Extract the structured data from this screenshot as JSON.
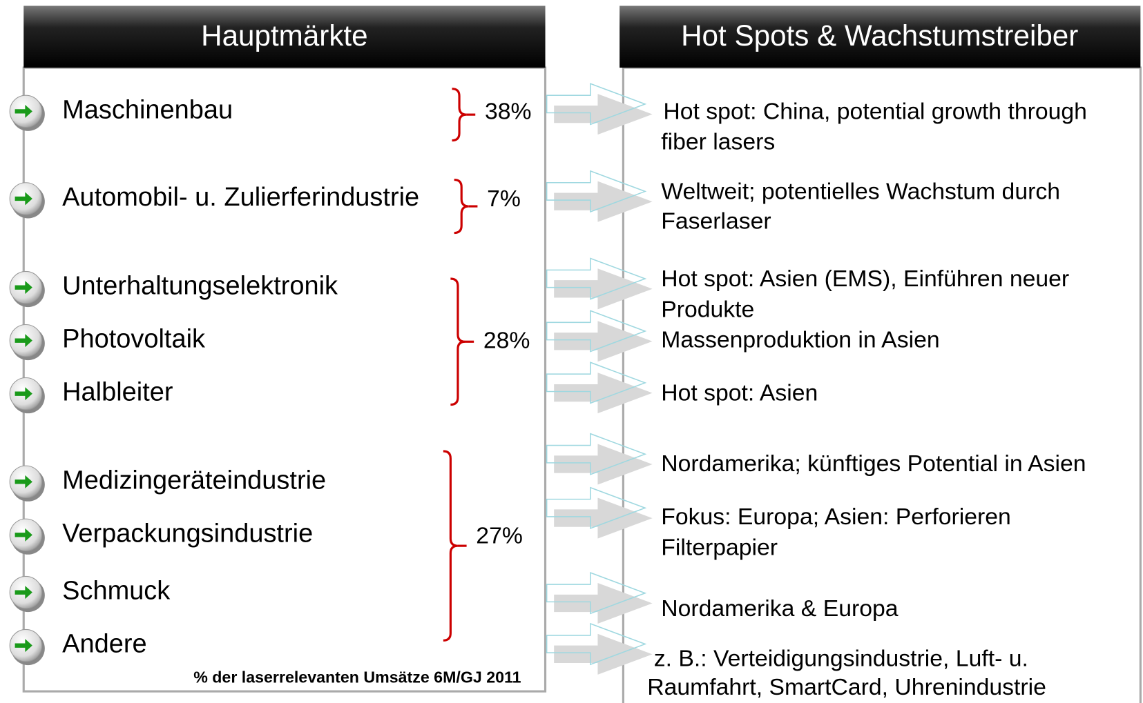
{
  "left": {
    "title": "Hauptmärkte",
    "items": [
      {
        "label": "Maschinenbau"
      },
      {
        "label": "Automobil- u. Zulierferindustrie"
      },
      {
        "label": "Unterhaltungselektronik"
      },
      {
        "label": "Photovoltaik"
      },
      {
        "label": "Halbleiter"
      },
      {
        "label": "Medizingeräteindustrie"
      },
      {
        "label": "Verpackungsindustrie"
      },
      {
        "label": "Schmuck"
      },
      {
        "label": "Andere"
      }
    ],
    "groups": [
      {
        "share": "38%"
      },
      {
        "share": "7%"
      },
      {
        "share": "28%"
      },
      {
        "share": "27%"
      }
    ],
    "footnote": "% der laserrelevanten Umsätze 6M/GJ 2011"
  },
  "right": {
    "title": "Hot Spots & Wachstumstreiber",
    "items": [
      {
        "lines": [
          "Hot spot: China, potential growth through",
          "fiber lasers"
        ]
      },
      {
        "lines": [
          "Weltweit; potentielles Wachstum durch",
          "Faserlaser"
        ]
      },
      {
        "lines": [
          "Hot spot: Asien (EMS), Einführen neuer",
          "Produkte"
        ]
      },
      {
        "lines": [
          "Massenproduktion in Asien"
        ]
      },
      {
        "lines": [
          "Hot spot: Asien"
        ]
      },
      {
        "lines": [
          "Nordamerika; künftiges Potential in Asien"
        ]
      },
      {
        "lines": [
          "Fokus: Europa; Asien: Perforieren",
          "Filterpapier"
        ]
      },
      {
        "lines": [
          "Nordamerika & Europa"
        ]
      },
      {
        "lines": [
          "z. B.: Verteidigungsindustrie, Luft- u.",
          "Raumfahrt, SmartCard, Uhrenindustrie"
        ]
      }
    ]
  }
}
